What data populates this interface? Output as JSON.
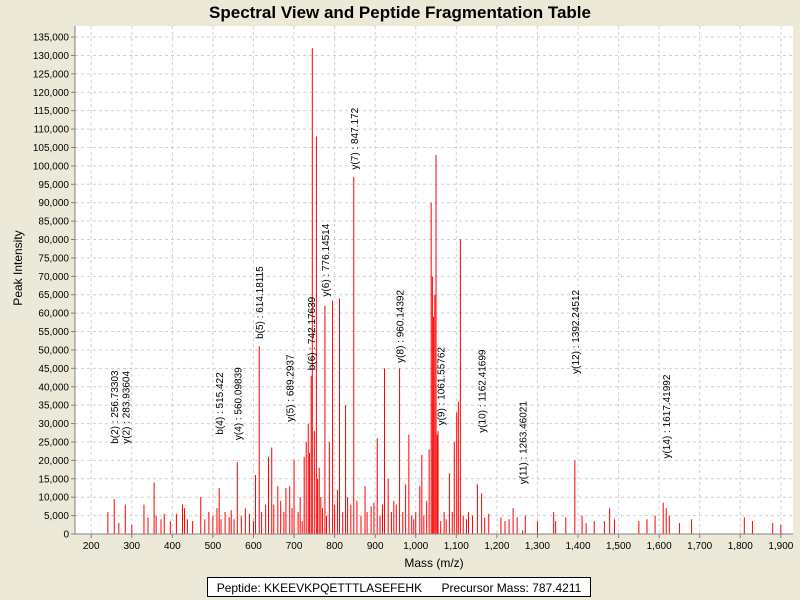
{
  "chart_data": {
    "type": "bar",
    "title": "Spectral View and Peptide Fragmentation Table",
    "xlabel": "Mass (m/z)",
    "ylabel": "Peak Intensity",
    "xlim": [
      160,
      1930
    ],
    "ylim": [
      0,
      138000
    ],
    "xticks": [
      200,
      300,
      400,
      500,
      600,
      700,
      800,
      900,
      1000,
      1100,
      1200,
      1300,
      1400,
      1500,
      1600,
      1700,
      1800,
      1900
    ],
    "xtick_labels": [
      "200",
      "300",
      "400",
      "500",
      "600",
      "700",
      "800",
      "900",
      "1,000",
      "1,100",
      "1,200",
      "1,300",
      "1,400",
      "1,500",
      "1,600",
      "1,700",
      "1,800",
      "1,900"
    ],
    "yticks": [
      0,
      5000,
      10000,
      15000,
      20000,
      25000,
      30000,
      35000,
      40000,
      45000,
      50000,
      55000,
      60000,
      65000,
      70000,
      75000,
      80000,
      85000,
      90000,
      95000,
      100000,
      105000,
      110000,
      115000,
      120000,
      125000,
      130000,
      135000
    ],
    "ytick_labels": [
      "0",
      "5,000",
      "10,000",
      "15,000",
      "20,000",
      "25,000",
      "30,000",
      "35,000",
      "40,000",
      "45,000",
      "50,000",
      "55,000",
      "60,000",
      "65,000",
      "70,000",
      "75,000",
      "80,000",
      "85,000",
      "90,000",
      "95,000",
      "100,000",
      "105,000",
      "110,000",
      "115,000",
      "120,000",
      "125,000",
      "130,000",
      "135,000"
    ],
    "grid": true,
    "peak_color": "#FF0000",
    "peaks": [
      [
        241,
        6000
      ],
      [
        256.7,
        9500
      ],
      [
        268,
        3000
      ],
      [
        283.9,
        8000
      ],
      [
        300,
        2500
      ],
      [
        330,
        8000
      ],
      [
        340,
        4500
      ],
      [
        355,
        14000
      ],
      [
        360,
        5000
      ],
      [
        372,
        4000
      ],
      [
        380,
        5500
      ],
      [
        395,
        3500
      ],
      [
        410,
        5500
      ],
      [
        425,
        8000
      ],
      [
        430,
        7000
      ],
      [
        437,
        4000
      ],
      [
        450,
        3500
      ],
      [
        470,
        10000
      ],
      [
        480,
        4000
      ],
      [
        490,
        6000
      ],
      [
        500,
        5000
      ],
      [
        510,
        7000
      ],
      [
        515.4,
        12500
      ],
      [
        520,
        4000
      ],
      [
        530,
        6000
      ],
      [
        540,
        4500
      ],
      [
        545,
        6500
      ],
      [
        552,
        4000
      ],
      [
        560.1,
        19500
      ],
      [
        570,
        5000
      ],
      [
        580,
        7000
      ],
      [
        590,
        5500
      ],
      [
        600,
        3500
      ],
      [
        605,
        16000
      ],
      [
        614.2,
        51000
      ],
      [
        620,
        6000
      ],
      [
        630,
        8000
      ],
      [
        637,
        21000
      ],
      [
        645,
        23500
      ],
      [
        650,
        8000
      ],
      [
        660,
        13000
      ],
      [
        667,
        9000
      ],
      [
        675,
        6000
      ],
      [
        680,
        12500
      ],
      [
        689.3,
        13000
      ],
      [
        695,
        7000
      ],
      [
        700,
        20000
      ],
      [
        710,
        6000
      ],
      [
        715,
        10000
      ],
      [
        720,
        3500
      ],
      [
        725,
        21000
      ],
      [
        730,
        25000
      ],
      [
        735,
        30000
      ],
      [
        738,
        22000
      ],
      [
        742.2,
        43000
      ],
      [
        745,
        132000
      ],
      [
        750,
        28000
      ],
      [
        755,
        108000
      ],
      [
        758,
        15000
      ],
      [
        762,
        18000
      ],
      [
        766,
        10000
      ],
      [
        770,
        7000
      ],
      [
        776.1,
        62000
      ],
      [
        780,
        5000
      ],
      [
        787,
        25000
      ],
      [
        795,
        63500
      ],
      [
        800,
        8000
      ],
      [
        807,
        12000
      ],
      [
        812,
        64000
      ],
      [
        820,
        6000
      ],
      [
        827,
        35000
      ],
      [
        832,
        10000
      ],
      [
        840,
        8000
      ],
      [
        847.2,
        97000
      ],
      [
        855,
        9000
      ],
      [
        865,
        5000
      ],
      [
        875,
        13000
      ],
      [
        880,
        6000
      ],
      [
        890,
        7500
      ],
      [
        897,
        8500
      ],
      [
        905,
        26000
      ],
      [
        912,
        5000
      ],
      [
        918,
        8000
      ],
      [
        923,
        45000
      ],
      [
        932,
        15000
      ],
      [
        940,
        6000
      ],
      [
        946,
        9000
      ],
      [
        952,
        8000
      ],
      [
        960.1,
        45000
      ],
      [
        968,
        6000
      ],
      [
        975,
        13500
      ],
      [
        983,
        27000
      ],
      [
        990,
        5000
      ],
      [
        995,
        4000
      ],
      [
        1000,
        6000
      ],
      [
        1010,
        13000
      ],
      [
        1015,
        21500
      ],
      [
        1020,
        5000
      ],
      [
        1027,
        9000
      ],
      [
        1033,
        23000
      ],
      [
        1038,
        90000
      ],
      [
        1041,
        70000
      ],
      [
        1044,
        59000
      ],
      [
        1047,
        65000
      ],
      [
        1050,
        103000
      ],
      [
        1053,
        27000
      ],
      [
        1055,
        28000
      ],
      [
        1061.6,
        3500
      ],
      [
        1070,
        6000
      ],
      [
        1075,
        4000
      ],
      [
        1083,
        16500
      ],
      [
        1090,
        6000
      ],
      [
        1095,
        25000
      ],
      [
        1101,
        33000
      ],
      [
        1105,
        36000
      ],
      [
        1110,
        80000
      ],
      [
        1117,
        5000
      ],
      [
        1125,
        4000
      ],
      [
        1130,
        6000
      ],
      [
        1140,
        5000
      ],
      [
        1152,
        13500
      ],
      [
        1162.4,
        11000
      ],
      [
        1170,
        4500
      ],
      [
        1180,
        5500
      ],
      [
        1210,
        4500
      ],
      [
        1220,
        3500
      ],
      [
        1230,
        4000
      ],
      [
        1240,
        7000
      ],
      [
        1250,
        4500
      ],
      [
        1263.5,
        1000
      ],
      [
        1270,
        5000
      ],
      [
        1300,
        3500
      ],
      [
        1340,
        6000
      ],
      [
        1345,
        3500
      ],
      [
        1370,
        4500
      ],
      [
        1392.2,
        20000
      ],
      [
        1410,
        5000
      ],
      [
        1420,
        3000
      ],
      [
        1440,
        3500
      ],
      [
        1465,
        3500
      ],
      [
        1478,
        7000
      ],
      [
        1490,
        4000
      ],
      [
        1550,
        3500
      ],
      [
        1570,
        4000
      ],
      [
        1590,
        5000
      ],
      [
        1610,
        8500
      ],
      [
        1617.4,
        7000
      ],
      [
        1625,
        5000
      ],
      [
        1650,
        3000
      ],
      [
        1680,
        4000
      ],
      [
        1810,
        4500
      ],
      [
        1830,
        3500
      ],
      [
        1880,
        3000
      ],
      [
        1900,
        2500
      ]
    ],
    "annotations": [
      {
        "mz": 256.73303,
        "label": "b(2) : 256.73303",
        "top": 24500
      },
      {
        "mz": 283.93604,
        "label": "y(2) : 283.93604",
        "top": 24500
      },
      {
        "mz": 515.422,
        "label": "b(4) : 515.422",
        "top": 27000
      },
      {
        "mz": 560.09839,
        "label": "y(4) : 560.09839",
        "top": 25500
      },
      {
        "mz": 614.18115,
        "label": "b(5) : 614.18115",
        "top": 53000
      },
      {
        "mz": 689.2937,
        "label": "y(5) : 689.2937",
        "top": 30500
      },
      {
        "mz": 742.17639,
        "label": "b(6) : 742.17639",
        "top": 44500
      },
      {
        "mz": 776.14514,
        "label": "y(6) : 776.14514",
        "top": 64500
      },
      {
        "mz": 847.172,
        "label": "y(7) : 847.172",
        "top": 99000
      },
      {
        "mz": 960.14392,
        "label": "y(8) : 960.14392",
        "top": 46500
      },
      {
        "mz": 1061.55762,
        "label": "y(9) : 1061.55762",
        "top": 29500
      },
      {
        "mz": 1162.41699,
        "label": "y(10) : 1162.41699",
        "top": 27500
      },
      {
        "mz": 1263.46021,
        "label": "y(11) : 1263.46021",
        "top": 13500
      },
      {
        "mz": 1392.24512,
        "label": "y(12) : 1392.24512",
        "top": 43500
      },
      {
        "mz": 1617.41992,
        "label": "y(14) : 1617.41992",
        "top": 20500
      }
    ]
  },
  "footer": {
    "peptide_label": "Peptide: KKEEVKPQETTTLASEFEHK",
    "precursor_label": "Precursor Mass: 787.4211"
  }
}
